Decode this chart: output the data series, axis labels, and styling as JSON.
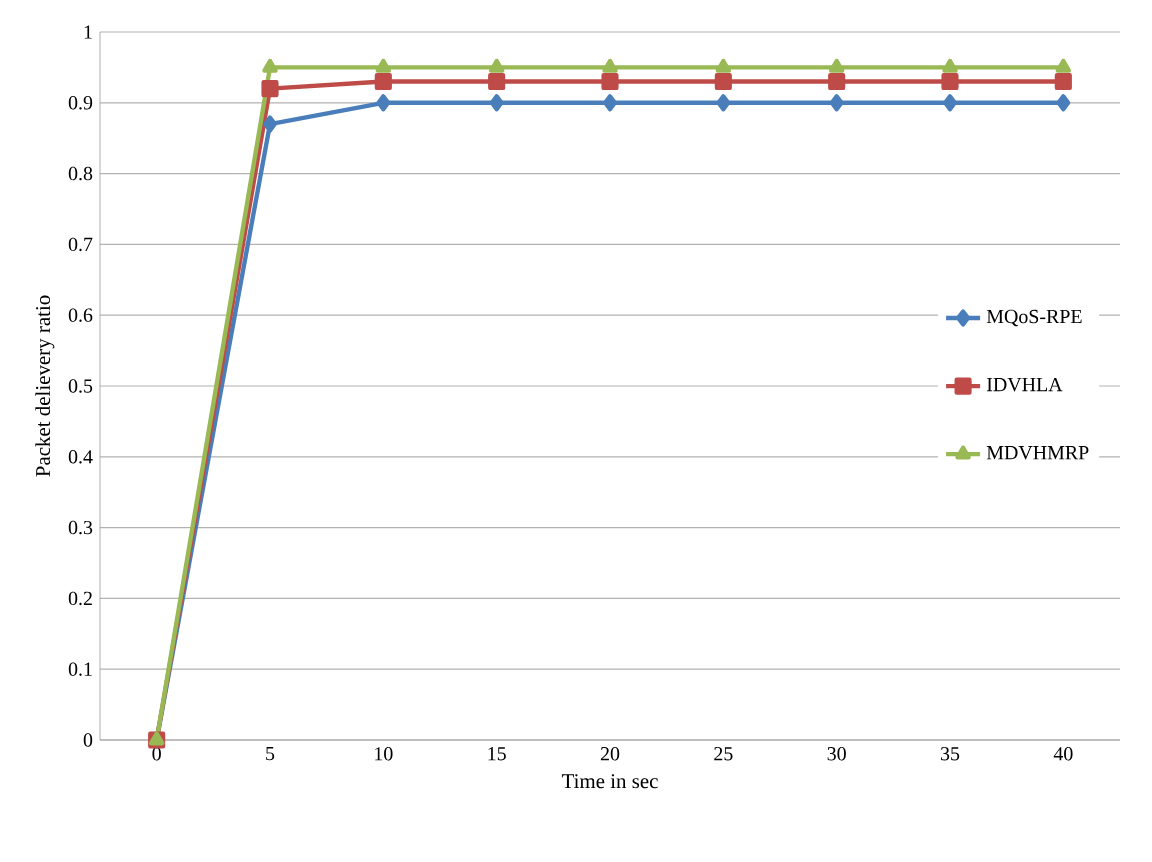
{
  "chart_data": {
    "type": "line",
    "xlabel": "Time in sec",
    "ylabel": "Packet delievery ratio",
    "categories": [
      "0",
      "5",
      "10",
      "15",
      "20",
      "25",
      "30",
      "35",
      "40"
    ],
    "series": [
      {
        "name": "MQoS-RPE",
        "color": "#4a7ebb",
        "marker": "diamond",
        "values": [
          0,
          0.87,
          0.9,
          0.9,
          0.9,
          0.9,
          0.9,
          0.9,
          0.9
        ]
      },
      {
        "name": "IDVHLA",
        "color": "#be4b48",
        "marker": "square",
        "values": [
          0,
          0.92,
          0.93,
          0.93,
          0.93,
          0.93,
          0.93,
          0.93,
          0.93
        ]
      },
      {
        "name": "MDVHMRP",
        "color": "#98b954",
        "marker": "triangle",
        "values": [
          0,
          0.95,
          0.95,
          0.95,
          0.95,
          0.95,
          0.95,
          0.95,
          0.95
        ]
      }
    ],
    "ylim": [
      0,
      1
    ],
    "yticks": [
      0,
      0.1,
      0.2,
      0.3,
      0.4,
      0.5,
      0.6,
      0.7,
      0.8,
      0.9,
      1
    ],
    "grid": "y",
    "legend": "right"
  }
}
